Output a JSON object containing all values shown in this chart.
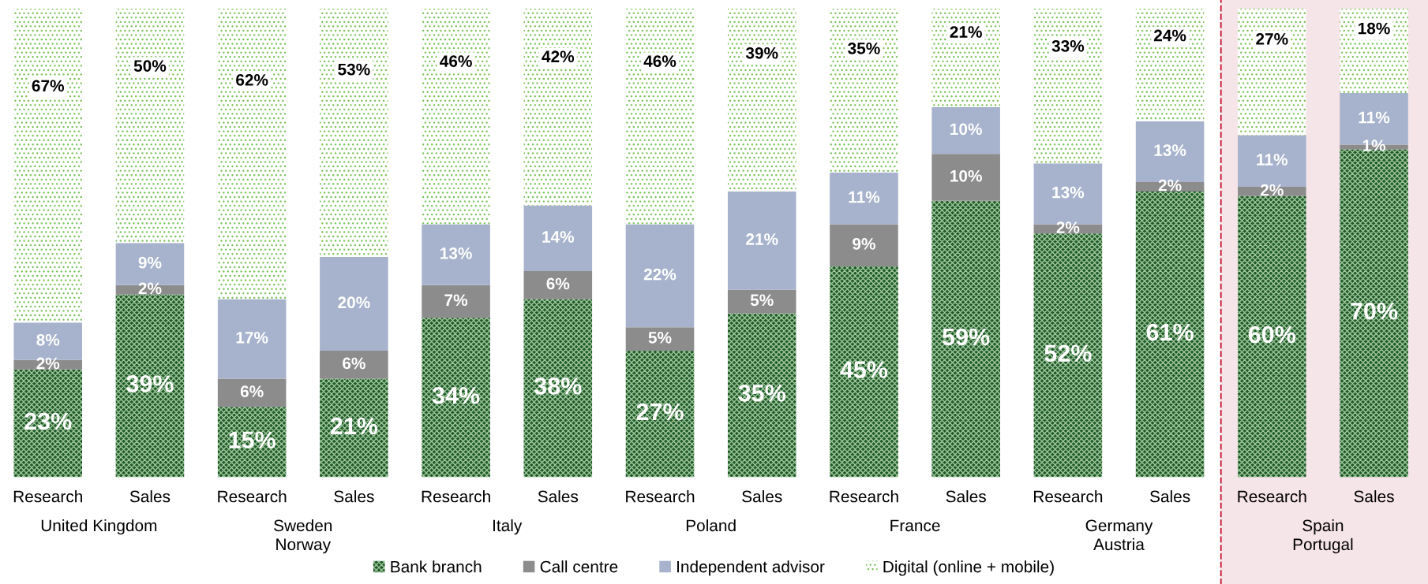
{
  "chart_data": {
    "type": "bar",
    "stacked": true,
    "categories": [
      "Research",
      "Sales",
      "Research",
      "Sales",
      "Research",
      "Sales",
      "Research",
      "Sales",
      "Research",
      "Sales",
      "Research",
      "Sales",
      "Research",
      "Sales"
    ],
    "series": [
      {
        "name": "Bank branch",
        "color": "#1f5a2b",
        "values": [
          23,
          39,
          15,
          21,
          34,
          38,
          27,
          35,
          45,
          59,
          52,
          61,
          60,
          70
        ],
        "value_labels": [
          "23%",
          "39%",
          "15%",
          "21%",
          "34%",
          "38%",
          "27%",
          "35%",
          "45%",
          "59%",
          "52%",
          "61%",
          "60%",
          "70%"
        ]
      },
      {
        "name": "Call centre",
        "color": "#8c8c8c",
        "values": [
          2,
          2,
          6,
          6,
          7,
          6,
          5,
          5,
          9,
          10,
          2,
          2,
          2,
          1
        ],
        "value_labels": [
          "2%",
          "2%",
          "6%",
          "6%",
          "7%",
          "6%",
          "5%",
          "5%",
          "9%",
          "10%",
          "2%",
          "2%",
          "2%",
          "1%"
        ]
      },
      {
        "name": "Independent advisor",
        "color": "#a7b3cc",
        "values": [
          8,
          9,
          17,
          20,
          13,
          14,
          22,
          21,
          11,
          10,
          13,
          13,
          11,
          11
        ],
        "value_labels": [
          "8%",
          "9%",
          "17%",
          "20%",
          "13%",
          "14%",
          "22%",
          "21%",
          "11%",
          "10%",
          "13%",
          "13%",
          "11%",
          "11%"
        ]
      },
      {
        "name": "Digital (online + mobile)",
        "color": "#7cc25a",
        "values": [
          67,
          50,
          62,
          53,
          46,
          42,
          46,
          39,
          35,
          21,
          33,
          24,
          27,
          18
        ],
        "value_labels": [
          "67%",
          "50%",
          "62%",
          "53%",
          "46%",
          "42%",
          "46%",
          "39%",
          "35%",
          "21%",
          "33%",
          "24%",
          "27%",
          "18%"
        ]
      }
    ],
    "annotations": [
      "United Kingdom",
      "Sweden\nNorway",
      "Italy",
      "Poland",
      "France",
      "Germany\nAustria",
      "Spain\nPortugal"
    ],
    "legend": "bottom"
  }
}
